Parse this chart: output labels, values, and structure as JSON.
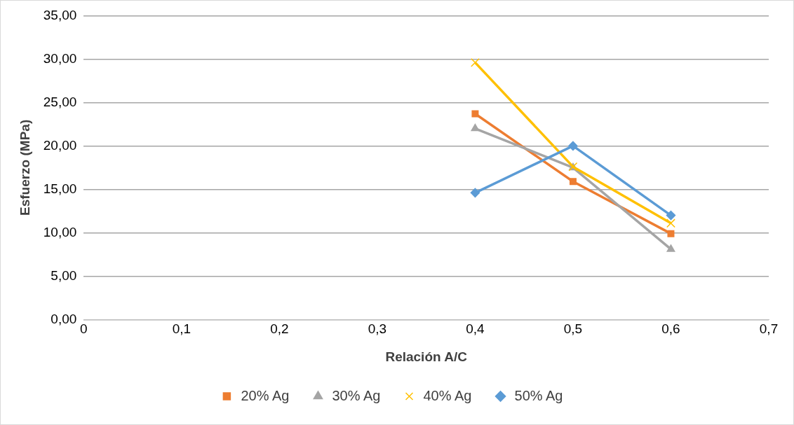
{
  "chart_data": {
    "type": "line",
    "xlabel": "Relación A/C",
    "ylabel": "Esfuerzo (MPa)",
    "x": [
      0.4,
      0.5,
      0.6
    ],
    "series": [
      {
        "name": "20% Ag",
        "color": "#ed7d31",
        "marker": "square",
        "values": [
          23.7,
          15.9,
          9.9
        ]
      },
      {
        "name": "30% Ag",
        "color": "#a5a5a5",
        "marker": "triangle",
        "values": [
          22.0,
          17.5,
          8.1
        ]
      },
      {
        "name": "40% Ag",
        "color": "#ffc000",
        "marker": "cross",
        "values": [
          29.6,
          17.6,
          11.1
        ]
      },
      {
        "name": "50% Ag",
        "color": "#5b9bd5",
        "marker": "diamond",
        "values": [
          14.6,
          20.0,
          12.0
        ]
      }
    ],
    "xlim": [
      0,
      0.7
    ],
    "xticks": [
      {
        "value": 0,
        "label": "0"
      },
      {
        "value": 0.1,
        "label": "0,1"
      },
      {
        "value": 0.2,
        "label": "0,2"
      },
      {
        "value": 0.3,
        "label": "0,3"
      },
      {
        "value": 0.4,
        "label": "0,4"
      },
      {
        "value": 0.5,
        "label": "0,5"
      },
      {
        "value": 0.6,
        "label": "0,6"
      },
      {
        "value": 0.7,
        "label": "0,7"
      }
    ],
    "ylim": [
      0,
      35
    ],
    "yticks": [
      {
        "value": 0,
        "label": "0,00"
      },
      {
        "value": 5,
        "label": "5,00"
      },
      {
        "value": 10,
        "label": "10,00"
      },
      {
        "value": 15,
        "label": "15,00"
      },
      {
        "value": 20,
        "label": "20,00"
      },
      {
        "value": 25,
        "label": "25,00"
      },
      {
        "value": 30,
        "label": "30,00"
      },
      {
        "value": 35,
        "label": "35,00"
      }
    ],
    "grid": "y",
    "legend": "bottom",
    "line_style": "solid"
  }
}
